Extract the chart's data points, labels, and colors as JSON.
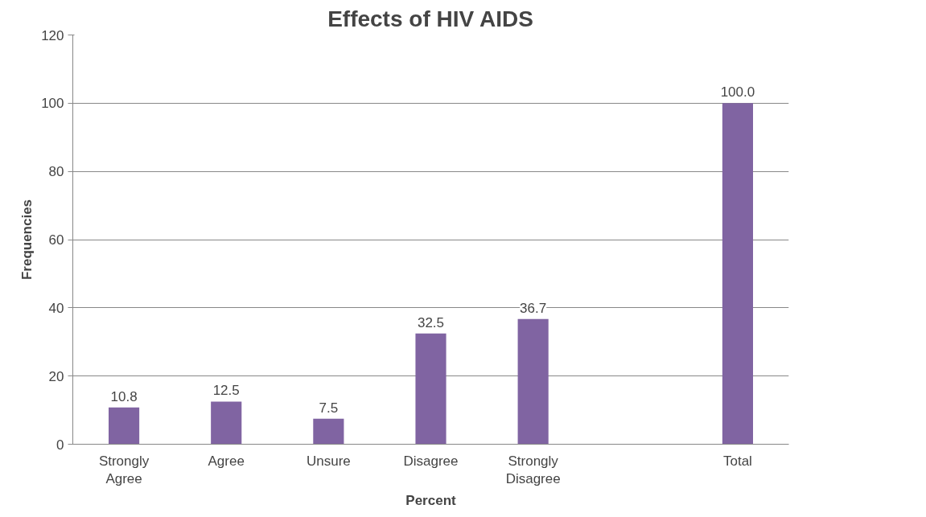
{
  "chart_data": {
    "type": "bar",
    "title": "Effects of HIV AIDS",
    "xlabel": "Percent",
    "ylabel": "Frequencies",
    "categories": [
      "Strongly Agree",
      "Agree",
      "Unsure",
      "Disagree",
      "Strongly Disagree",
      null,
      "Total"
    ],
    "values": [
      10.8,
      12.5,
      7.5,
      32.5,
      36.7,
      null,
      100.0
    ],
    "value_labels": [
      "10.8",
      "12.5",
      "7.5",
      "32.5",
      "36.7",
      null,
      "100.0"
    ],
    "color": "#8064a2",
    "ylim": [
      0,
      120
    ],
    "yticks": [
      0,
      20,
      40,
      60,
      80,
      100,
      120
    ],
    "grid": "y"
  }
}
